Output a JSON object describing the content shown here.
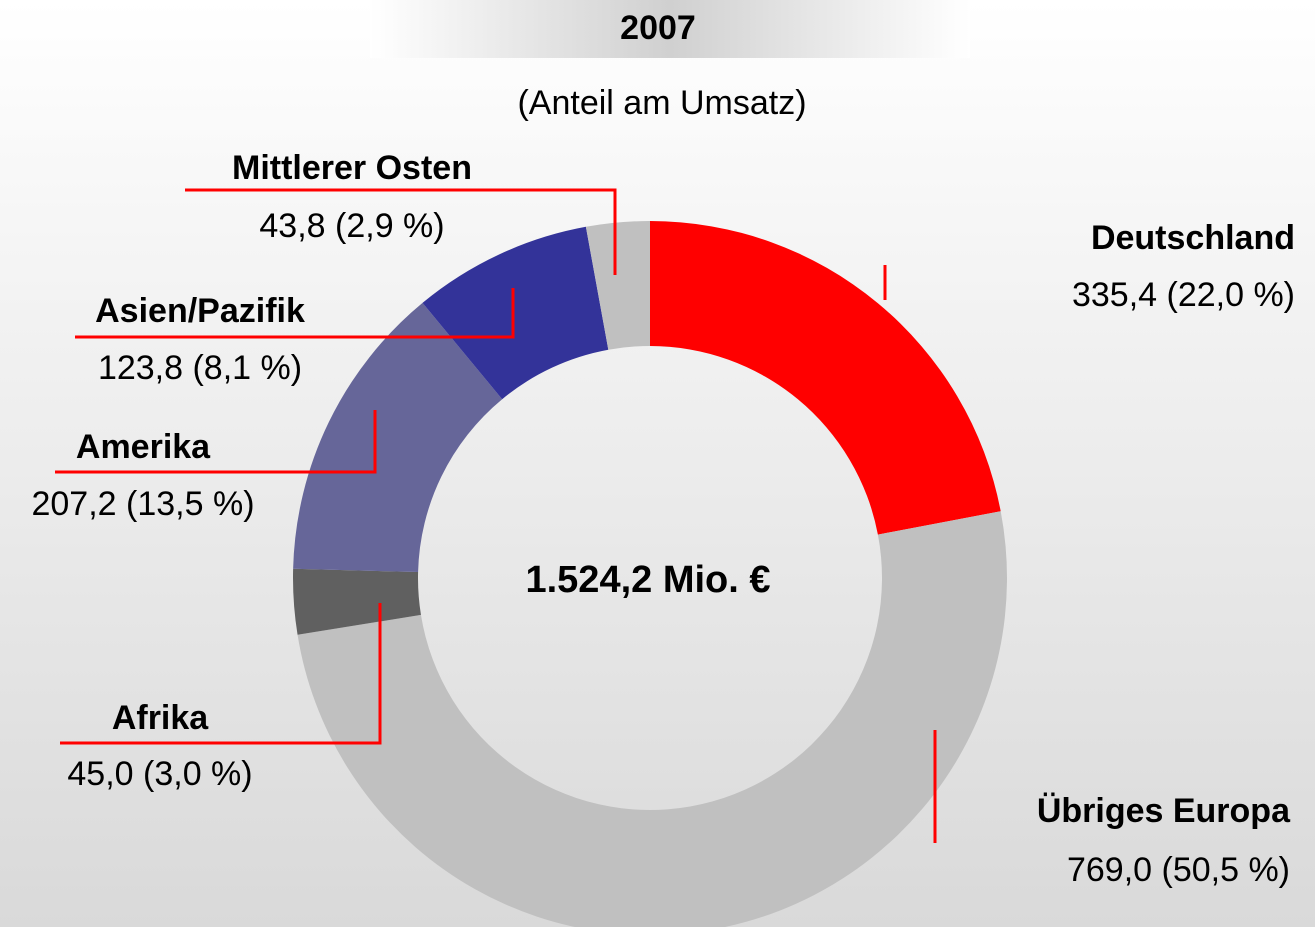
{
  "chart_data": {
    "type": "donut",
    "title": "2007",
    "subtitle": "(Anteil am Umsatz)",
    "center_label": "1.524,2 Mio. €",
    "categories": [
      "Deutschland",
      "Übriges Europa",
      "Afrika",
      "Amerika",
      "Asien/Pazifik",
      "Mittlerer Osten"
    ],
    "values": [
      335.4,
      769.0,
      45.0,
      207.2,
      123.8,
      43.8
    ],
    "value_labels": [
      "335,4 (22,0 %)",
      "769,0 (50,5 %)",
      "45,0 (3,0 %)",
      "207,2 (13,5 %)",
      "123,8 (8,1 %)",
      "43,8 (2,9 %)"
    ],
    "colors": [
      "#ff0000",
      "#c0c0c0",
      "#606060",
      "#666699",
      "#333399",
      "#c0c0c0"
    ]
  }
}
